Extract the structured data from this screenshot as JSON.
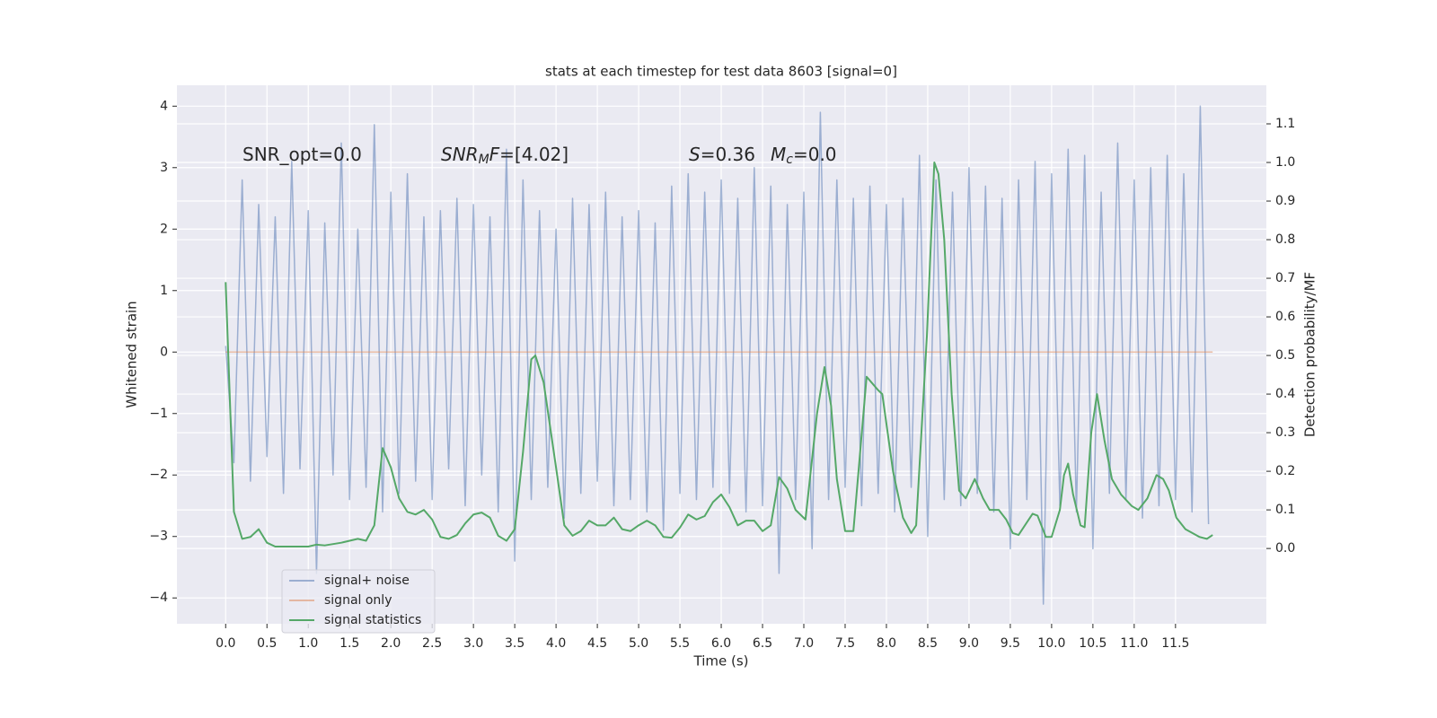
{
  "chart_data": {
    "type": "line",
    "title": "stats at each timestep for test data 8603 [signal=0]",
    "xlabel": "Time (s)",
    "ylabel": "Whitened strain",
    "y2label": "Detection probability/MF",
    "grid": true,
    "legend": "lower left",
    "xlim": [
      -0.59,
      12.6
    ],
    "ylim": [
      -4.42,
      4.34
    ],
    "y2lim": [
      -0.195,
      1.2
    ],
    "xticks": [
      {
        "value": 0,
        "label": "0.0"
      },
      0.5,
      {
        "value": 1,
        "label": "1.0"
      },
      1.5,
      {
        "value": 2,
        "label": "2.0"
      },
      2.5,
      {
        "value": 3,
        "label": "3.0"
      },
      3.5,
      {
        "value": 4,
        "label": "4.0"
      },
      4.5,
      {
        "value": 5,
        "label": "5.0"
      },
      5.5,
      {
        "value": 6,
        "label": "6.0"
      },
      6.5,
      {
        "value": 7,
        "label": "7.0"
      },
      7.5,
      {
        "value": 8,
        "label": "8.0"
      },
      8.5,
      {
        "value": 9,
        "label": "9.0"
      },
      9.5,
      {
        "value": 10,
        "label": "10.0"
      },
      10.5,
      {
        "value": 11,
        "label": "11.0"
      },
      11.5
    ],
    "yticks": [
      {
        "value": -4,
        "label": "−4"
      },
      {
        "value": -3,
        "label": "−3"
      },
      {
        "value": -2,
        "label": "−2"
      },
      {
        "value": -1,
        "label": "−1"
      },
      0,
      1,
      2,
      3,
      4
    ],
    "y2ticks": [
      {
        "value": 0,
        "label": "0.0"
      },
      0.1,
      0.2,
      0.3,
      0.4,
      0.5,
      0.6,
      0.7,
      0.8,
      0.9,
      {
        "value": 1,
        "label": "1.0"
      },
      1.1
    ],
    "annotations": [
      {
        "parts": [
          {
            "text": "SNR_opt=0.0"
          }
        ]
      },
      {
        "parts": [
          {
            "text": "SNR",
            "style": "italic"
          },
          {
            "text": "M",
            "style": "italic-sub"
          },
          {
            "text": "F",
            "style": "italic"
          },
          {
            "text": "=[4.02]"
          }
        ]
      },
      {
        "parts": [
          {
            "text": "S",
            "style": "italic"
          },
          {
            "text": "=0.36"
          }
        ]
      },
      {
        "parts": [
          {
            "text": "M",
            "style": "italic"
          },
          {
            "text": "c",
            "style": "italic-sub"
          },
          {
            "text": "=0.0"
          }
        ]
      }
    ],
    "series": [
      {
        "name": "signal+ noise",
        "color": "#4c72b0",
        "alpha": 0.5,
        "x": [
          0.0,
          0.1,
          0.2,
          0.3,
          0.4,
          0.5,
          0.6,
          0.7,
          0.8,
          0.9,
          1.0,
          1.1,
          1.2,
          1.3,
          1.4,
          1.5,
          1.6,
          1.7,
          1.8,
          1.9,
          2.0,
          2.1,
          2.2,
          2.3,
          2.4,
          2.5,
          2.6,
          2.7,
          2.8,
          2.9,
          3.0,
          3.1,
          3.2,
          3.3,
          3.4,
          3.5,
          3.6,
          3.7,
          3.8,
          3.9,
          4.0,
          4.1,
          4.2,
          4.3,
          4.4,
          4.5,
          4.6,
          4.7,
          4.8,
          4.9,
          5.0,
          5.1,
          5.2,
          5.3,
          5.4,
          5.5,
          5.6,
          5.7,
          5.8,
          5.9,
          6.0,
          6.1,
          6.2,
          6.3,
          6.4,
          6.5,
          6.6,
          6.7,
          6.8,
          6.9,
          7.0,
          7.1,
          7.2,
          7.3,
          7.4,
          7.5,
          7.6,
          7.7,
          7.8,
          7.9,
          8.0,
          8.1,
          8.2,
          8.3,
          8.4,
          8.5,
          8.6,
          8.7,
          8.8,
          8.9,
          9.0,
          9.1,
          9.2,
          9.3,
          9.4,
          9.5,
          9.6,
          9.7,
          9.8,
          9.9,
          10.0,
          10.1,
          10.2,
          10.3,
          10.4,
          10.5,
          10.6,
          10.7,
          10.8,
          10.9,
          11.0,
          11.1,
          11.2,
          11.3,
          11.4,
          11.5,
          11.6,
          11.7,
          11.8,
          11.9
        ],
        "values": [
          0.1,
          -1.8,
          2.8,
          -2.1,
          2.4,
          -1.7,
          2.2,
          -2.3,
          3.1,
          -1.9,
          2.3,
          -3.6,
          2.1,
          -2.0,
          3.4,
          -2.4,
          2.0,
          -2.2,
          3.7,
          -2.6,
          2.6,
          -2.3,
          2.9,
          -2.1,
          2.2,
          -2.4,
          2.3,
          -1.9,
          2.5,
          -2.5,
          2.4,
          -2.0,
          2.2,
          -2.6,
          3.3,
          -3.4,
          2.8,
          -2.4,
          2.3,
          -2.2,
          2.0,
          -2.7,
          2.5,
          -2.3,
          2.4,
          -2.1,
          2.6,
          -2.5,
          2.2,
          -2.4,
          2.3,
          -2.6,
          2.1,
          -2.9,
          2.7,
          -2.3,
          2.9,
          -2.4,
          2.6,
          -2.2,
          2.8,
          -2.3,
          2.5,
          -2.6,
          3.0,
          -2.5,
          2.7,
          -3.6,
          2.4,
          -2.4,
          2.6,
          -3.2,
          3.9,
          -2.4,
          2.8,
          -2.2,
          2.5,
          -2.5,
          2.7,
          -2.3,
          2.4,
          -2.6,
          2.5,
          -2.2,
          3.2,
          -3.0,
          2.8,
          -2.4,
          2.6,
          -2.5,
          3.0,
          -2.3,
          2.7,
          -2.6,
          2.5,
          -3.2,
          2.8,
          -2.4,
          3.1,
          -4.1,
          2.9,
          -2.5,
          3.3,
          -2.6,
          3.2,
          -3.2,
          2.6,
          -2.3,
          3.4,
          -2.4,
          2.8,
          -2.7,
          3.0,
          -2.5,
          3.2,
          -2.4,
          2.9,
          -2.6,
          4.0,
          -2.8
        ]
      },
      {
        "name": "signal only",
        "color": "#dd8452",
        "alpha": 0.5,
        "x": [
          0.0,
          11.95
        ],
        "values": [
          0,
          0
        ]
      },
      {
        "name": "signal statistics",
        "color": "#55a868",
        "alpha": 1,
        "axis": "y2",
        "x": [
          0,
          0.1,
          0.2,
          0.3,
          0.4,
          0.5,
          0.6,
          0.8,
          1.0,
          1.1,
          1.2,
          1.4,
          1.6,
          1.7,
          1.8,
          1.9,
          2.0,
          2.1,
          2.2,
          2.3,
          2.4,
          2.5,
          2.6,
          2.7,
          2.8,
          2.9,
          3.0,
          3.1,
          3.2,
          3.3,
          3.4,
          3.5,
          3.6,
          3.7,
          3.75,
          3.85,
          4.0,
          4.1,
          4.2,
          4.3,
          4.4,
          4.5,
          4.6,
          4.7,
          4.8,
          4.9,
          5.0,
          5.1,
          5.2,
          5.3,
          5.4,
          5.5,
          5.6,
          5.7,
          5.8,
          5.9,
          6.0,
          6.1,
          6.2,
          6.3,
          6.4,
          6.5,
          6.6,
          6.7,
          6.8,
          6.9,
          7.02,
          7.16,
          7.25,
          7.33,
          7.4,
          7.5,
          7.6,
          7.76,
          7.82,
          7.9,
          7.95,
          8.08,
          8.2,
          8.3,
          8.36,
          8.49,
          8.58,
          8.63,
          8.7,
          8.79,
          8.88,
          8.96,
          9.07,
          9.17,
          9.25,
          9.36,
          9.45,
          9.53,
          9.6,
          9.77,
          9.83,
          9.93,
          10.0,
          10.1,
          10.15,
          10.2,
          10.26,
          10.35,
          10.4,
          10.48,
          10.55,
          10.64,
          10.73,
          10.84,
          10.97,
          11.05,
          11.16,
          11.27,
          11.35,
          11.42,
          11.51,
          11.62,
          11.79,
          11.88,
          11.95
        ],
        "values": [
          0.69,
          0.095,
          0.025,
          0.03,
          0.05,
          0.015,
          0.005,
          0.005,
          0.005,
          0.01,
          0.008,
          0.015,
          0.025,
          0.02,
          0.06,
          0.26,
          0.21,
          0.13,
          0.095,
          0.088,
          0.1,
          0.075,
          0.03,
          0.025,
          0.035,
          0.065,
          0.088,
          0.093,
          0.08,
          0.033,
          0.02,
          0.05,
          0.25,
          0.49,
          0.5,
          0.43,
          0.21,
          0.06,
          0.033,
          0.045,
          0.072,
          0.06,
          0.06,
          0.08,
          0.05,
          0.045,
          0.06,
          0.072,
          0.06,
          0.03,
          0.028,
          0.054,
          0.088,
          0.075,
          0.084,
          0.12,
          0.14,
          0.107,
          0.06,
          0.072,
          0.072,
          0.045,
          0.06,
          0.185,
          0.155,
          0.1,
          0.075,
          0.35,
          0.47,
          0.37,
          0.18,
          0.045,
          0.045,
          0.445,
          0.43,
          0.41,
          0.4,
          0.2,
          0.08,
          0.04,
          0.06,
          0.55,
          1.0,
          0.97,
          0.8,
          0.4,
          0.15,
          0.13,
          0.18,
          0.13,
          0.1,
          0.1,
          0.075,
          0.04,
          0.035,
          0.09,
          0.085,
          0.03,
          0.03,
          0.1,
          0.19,
          0.22,
          0.14,
          0.06,
          0.055,
          0.3,
          0.4,
          0.28,
          0.18,
          0.14,
          0.11,
          0.1,
          0.13,
          0.19,
          0.18,
          0.15,
          0.08,
          0.05,
          0.03,
          0.025,
          0.035
        ]
      }
    ]
  }
}
